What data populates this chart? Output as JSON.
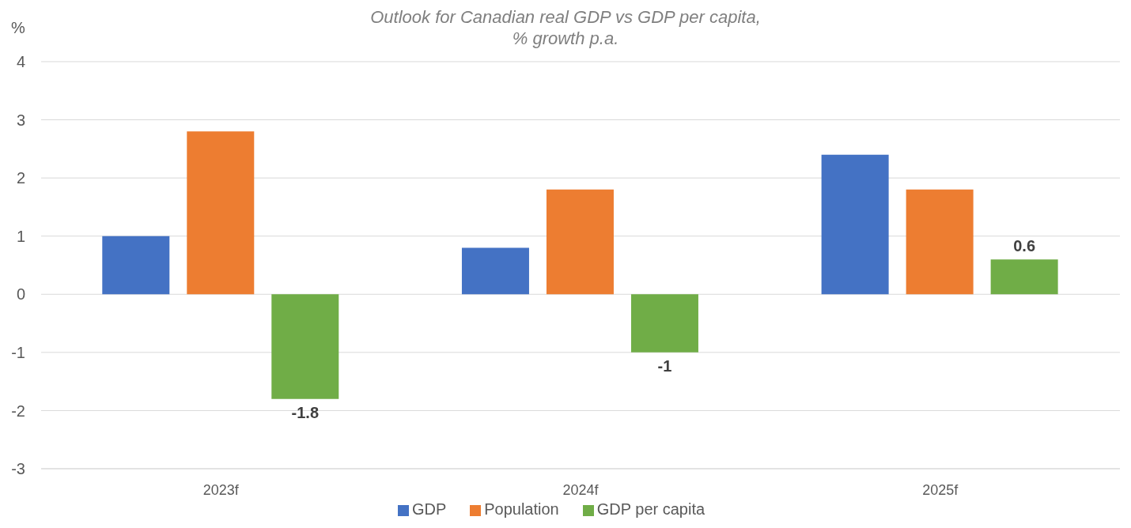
{
  "chart_data": {
    "type": "bar",
    "title": "Outlook for Canadian real GDP vs GDP per capita,\n% growth p.a.",
    "ylabel": "%",
    "categories": [
      "2023f",
      "2024f",
      "2025f"
    ],
    "series": [
      {
        "name": "GDP",
        "color": "#4472c4",
        "values": [
          1,
          0.8,
          2.4
        ]
      },
      {
        "name": "Population",
        "color": "#ed7d31",
        "values": [
          2.8,
          1.8,
          1.8
        ]
      },
      {
        "name": "GDP per capita",
        "color": "#70ad47",
        "values": [
          -1.8,
          -1,
          0.6
        ],
        "value_labels": [
          "-1.8",
          "-1",
          "0.6"
        ]
      }
    ],
    "ylim": [
      -3,
      4
    ],
    "yticks": [
      -3,
      -2,
      -1,
      0,
      1,
      2,
      3,
      4
    ],
    "grid": "y",
    "legend": "bottom"
  }
}
